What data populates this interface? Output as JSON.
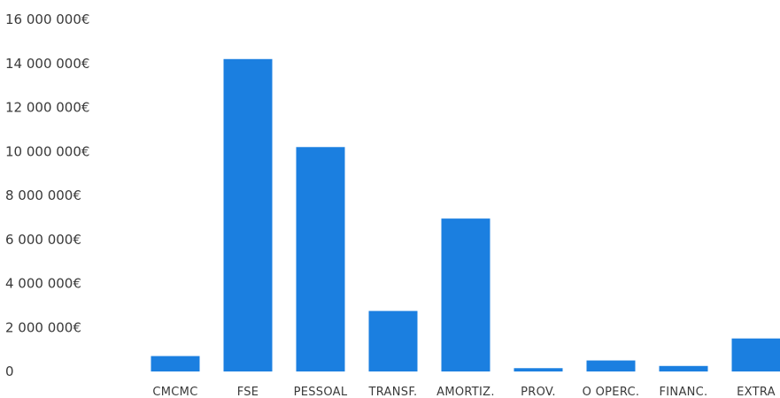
{
  "chart_data": {
    "type": "bar",
    "categories": [
      "CMCMC",
      "FSE",
      "PESSOAL",
      "TRANSF.",
      "AMORTIZ.",
      "PROV.",
      "O OPERC.",
      "FINANC.",
      "EXTRA"
    ],
    "values": [
      700000,
      14200000,
      10200000,
      2750000,
      6950000,
      150000,
      500000,
      250000,
      1500000
    ],
    "title": "",
    "xlabel": "",
    "ylabel": "",
    "ylim": [
      0,
      16000000
    ],
    "yticks": [
      0,
      2000000,
      4000000,
      6000000,
      8000000,
      10000000,
      12000000,
      14000000,
      16000000
    ],
    "ytick_labels": [
      "0",
      "2 000 000€",
      "4 000 000€",
      "6 000 000€",
      "8 000 000€",
      "10 000 000€",
      "12 000 000€",
      "14 000 000€",
      "16 000 000€"
    ],
    "grid": false,
    "legend": "none",
    "bar_color": "#1b7fe0"
  }
}
